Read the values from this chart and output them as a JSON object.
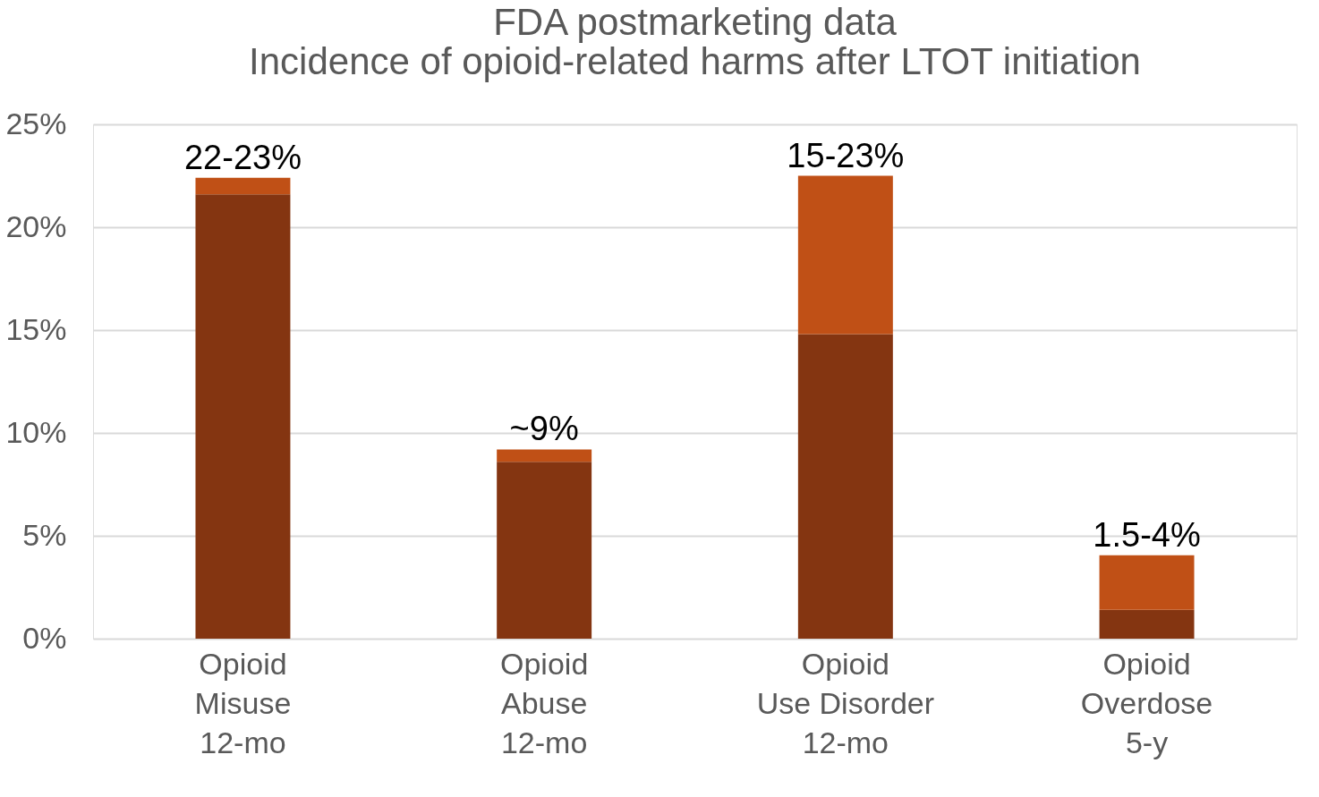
{
  "chart_data": {
    "type": "bar",
    "title": "FDA postmarketing data\nIncidence of opioid-related harms after LTOT initiation",
    "categories": [
      "Opioid\nMisuse\n12-mo",
      "Opioid\nAbuse\n12-mo",
      "Opioid\nUse Disorder\n12-mo",
      "Opioid\nOverdose\n5-y"
    ],
    "stacked": true,
    "series": [
      {
        "color": "#843511",
        "values": [
          21.6,
          8.6,
          14.8,
          1.4
        ]
      },
      {
        "color": "#c05016",
        "values": [
          0.8,
          0.6,
          7.7,
          2.65
        ]
      }
    ],
    "totals": [
      "22-23%",
      "~9%",
      "15-23%",
      "1.5-4%"
    ],
    "ylim": [
      0,
      25
    ],
    "yticks": [
      {
        "value": 0,
        "label": "0%"
      },
      {
        "value": 5,
        "label": "5%"
      },
      {
        "value": 10,
        "label": "10%"
      },
      {
        "value": 15,
        "label": "15%"
      },
      {
        "value": 20,
        "label": "20%"
      },
      {
        "value": 25,
        "label": "25%"
      }
    ],
    "grid": "y",
    "legend": false
  }
}
